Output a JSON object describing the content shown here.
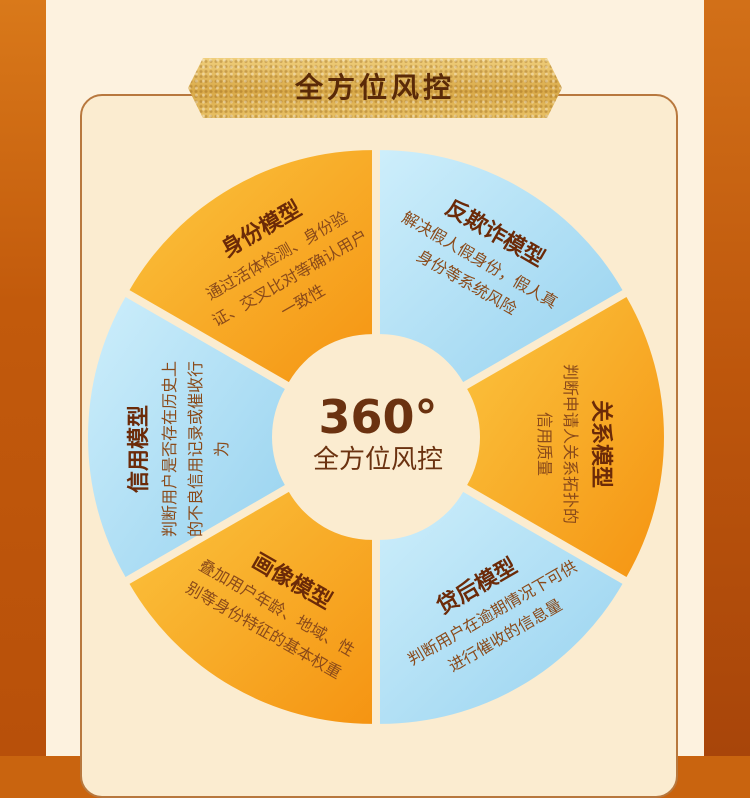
{
  "banner": {
    "title": "全方位风控"
  },
  "center": {
    "number": "360°",
    "subtitle": "全方位风控"
  },
  "segments": [
    {
      "title": "身份模型",
      "desc": "通过活体检测、身份验证、交叉比对等确认用户一致性",
      "color": "orange"
    },
    {
      "title": "反欺诈模型",
      "desc": "解决假人假身份，假人真身份等系统风险",
      "color": "blue"
    },
    {
      "title": "关系模型",
      "desc": "判断申请人关系拓扑的信用质量",
      "color": "orange"
    },
    {
      "title": "贷后模型",
      "desc": "判断用户在逾期情况下可供进行催收的信息量",
      "color": "blue"
    },
    {
      "title": "画像模型",
      "desc": "叠加用户年龄、地域、性别等身份特征的基本权重",
      "color": "orange"
    },
    {
      "title": "信用模型",
      "desc": "判断用户是否存在历史上的不良信用记录或催收行为",
      "color": "blue"
    }
  ],
  "colors": {
    "orange": "#f7a21a",
    "orange_light": "#fbc43f",
    "blue": "#a8dcf3",
    "blue_light": "#c8ebf8",
    "brand": "#6b3210"
  }
}
